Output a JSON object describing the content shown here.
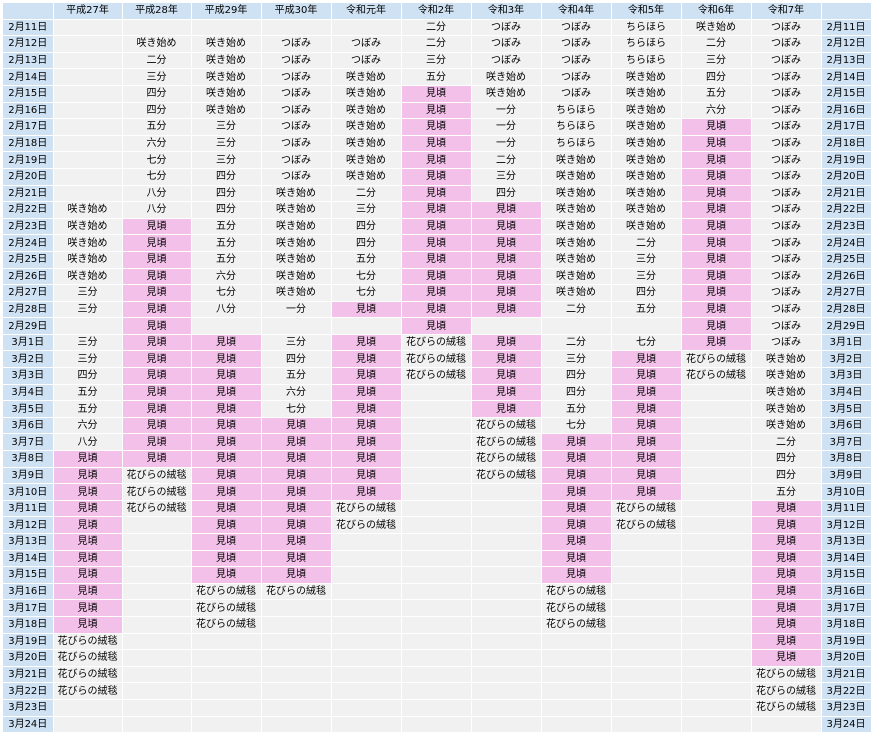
{
  "headers": [
    "",
    "平成27年",
    "平成28年",
    "平成29年",
    "平成30年",
    "令和元年",
    "令和2年",
    "令和3年",
    "令和4年",
    "令和5年",
    "令和6年",
    "令和7年",
    ""
  ],
  "legend_color": {
    "mikoro": "#f2c0e8",
    "date_bg": "#cfe2f4",
    "cell_bg": "#f1f1f1"
  },
  "rows": [
    {
      "date": "2月11日",
      "cells": [
        "",
        "",
        "",
        "",
        "",
        "二分",
        "つぼみ",
        "つぼみ",
        "ちらほら",
        "咲き始め",
        "つぼみ"
      ]
    },
    {
      "date": "2月12日",
      "cells": [
        "",
        "咲き始め",
        "咲き始め",
        "つぼみ",
        "つぼみ",
        "二分",
        "つぼみ",
        "つぼみ",
        "ちらほら",
        "二分",
        "つぼみ"
      ]
    },
    {
      "date": "2月13日",
      "cells": [
        "",
        "二分",
        "咲き始め",
        "つぼみ",
        "つぼみ",
        "三分",
        "つぼみ",
        "つぼみ",
        "ちらほら",
        "三分",
        "つぼみ"
      ]
    },
    {
      "date": "2月14日",
      "cells": [
        "",
        "三分",
        "咲き始め",
        "つぼみ",
        "咲き始め",
        "五分",
        "咲き始め",
        "つぼみ",
        "咲き始め",
        "四分",
        "つぼみ"
      ]
    },
    {
      "date": "2月15日",
      "cells": [
        "",
        "四分",
        "咲き始め",
        "つぼみ",
        "咲き始め",
        "見頃",
        "咲き始め",
        "つぼみ",
        "咲き始め",
        "五分",
        "つぼみ"
      ]
    },
    {
      "date": "2月16日",
      "cells": [
        "",
        "四分",
        "咲き始め",
        "つぼみ",
        "咲き始め",
        "見頃",
        "一分",
        "ちらほら",
        "咲き始め",
        "六分",
        "つぼみ"
      ]
    },
    {
      "date": "2月17日",
      "cells": [
        "",
        "五分",
        "三分",
        "つぼみ",
        "咲き始め",
        "見頃",
        "一分",
        "ちらほら",
        "咲き始め",
        "見頃",
        "つぼみ"
      ]
    },
    {
      "date": "2月18日",
      "cells": [
        "",
        "六分",
        "三分",
        "つぼみ",
        "咲き始め",
        "見頃",
        "一分",
        "ちらほら",
        "咲き始め",
        "見頃",
        "つぼみ"
      ]
    },
    {
      "date": "2月19日",
      "cells": [
        "",
        "七分",
        "三分",
        "つぼみ",
        "咲き始め",
        "見頃",
        "二分",
        "咲き始め",
        "咲き始め",
        "見頃",
        "つぼみ"
      ]
    },
    {
      "date": "2月20日",
      "cells": [
        "",
        "七分",
        "四分",
        "つぼみ",
        "咲き始め",
        "見頃",
        "三分",
        "咲き始め",
        "咲き始め",
        "見頃",
        "つぼみ"
      ]
    },
    {
      "date": "2月21日",
      "cells": [
        "",
        "八分",
        "四分",
        "咲き始め",
        "二分",
        "見頃",
        "四分",
        "咲き始め",
        "咲き始め",
        "見頃",
        "つぼみ"
      ]
    },
    {
      "date": "2月22日",
      "cells": [
        "咲き始め",
        "八分",
        "四分",
        "咲き始め",
        "三分",
        "見頃",
        "見頃",
        "咲き始め",
        "咲き始め",
        "見頃",
        "つぼみ"
      ]
    },
    {
      "date": "2月23日",
      "cells": [
        "咲き始め",
        "見頃",
        "五分",
        "咲き始め",
        "四分",
        "見頃",
        "見頃",
        "咲き始め",
        "咲き始め",
        "見頃",
        "つぼみ"
      ]
    },
    {
      "date": "2月24日",
      "cells": [
        "咲き始め",
        "見頃",
        "五分",
        "咲き始め",
        "四分",
        "見頃",
        "見頃",
        "咲き始め",
        "二分",
        "見頃",
        "つぼみ"
      ]
    },
    {
      "date": "2月25日",
      "cells": [
        "咲き始め",
        "見頃",
        "五分",
        "咲き始め",
        "五分",
        "見頃",
        "見頃",
        "咲き始め",
        "三分",
        "見頃",
        "つぼみ"
      ]
    },
    {
      "date": "2月26日",
      "cells": [
        "咲き始め",
        "見頃",
        "六分",
        "咲き始め",
        "七分",
        "見頃",
        "見頃",
        "咲き始め",
        "三分",
        "見頃",
        "つぼみ"
      ]
    },
    {
      "date": "2月27日",
      "cells": [
        "三分",
        "見頃",
        "七分",
        "咲き始め",
        "七分",
        "見頃",
        "見頃",
        "咲き始め",
        "四分",
        "見頃",
        "つぼみ"
      ]
    },
    {
      "date": "2月28日",
      "cells": [
        "三分",
        "見頃",
        "八分",
        "一分",
        "見頃",
        "見頃",
        "見頃",
        "二分",
        "五分",
        "見頃",
        "つぼみ"
      ]
    },
    {
      "date": "2月29日",
      "cells": [
        "",
        "見頃",
        "",
        "",
        "",
        "見頃",
        "",
        "",
        "",
        "見頃",
        "つぼみ"
      ]
    },
    {
      "date": "3月1日",
      "cells": [
        "三分",
        "見頃",
        "見頃",
        "三分",
        "見頃",
        "花びらの絨毯",
        "見頃",
        "二分",
        "七分",
        "見頃",
        "つぼみ"
      ]
    },
    {
      "date": "3月2日",
      "cells": [
        "三分",
        "見頃",
        "見頃",
        "四分",
        "見頃",
        "花びらの絨毯",
        "見頃",
        "三分",
        "見頃",
        "花びらの絨毯",
        "咲き始め"
      ]
    },
    {
      "date": "3月3日",
      "cells": [
        "四分",
        "見頃",
        "見頃",
        "五分",
        "見頃",
        "花びらの絨毯",
        "見頃",
        "四分",
        "見頃",
        "花びらの絨毯",
        "咲き始め"
      ]
    },
    {
      "date": "3月4日",
      "cells": [
        "五分",
        "見頃",
        "見頃",
        "六分",
        "見頃",
        "",
        "見頃",
        "四分",
        "見頃",
        "",
        "咲き始め"
      ]
    },
    {
      "date": "3月5日",
      "cells": [
        "五分",
        "見頃",
        "見頃",
        "七分",
        "見頃",
        "",
        "見頃",
        "五分",
        "見頃",
        "",
        "咲き始め"
      ]
    },
    {
      "date": "3月6日",
      "cells": [
        "六分",
        "見頃",
        "見頃",
        "見頃",
        "見頃",
        "",
        "花びらの絨毯",
        "七分",
        "見頃",
        "",
        "咲き始め"
      ]
    },
    {
      "date": "3月7日",
      "cells": [
        "八分",
        "見頃",
        "見頃",
        "見頃",
        "見頃",
        "",
        "花びらの絨毯",
        "見頃",
        "見頃",
        "",
        "二分"
      ]
    },
    {
      "date": "3月8日",
      "cells": [
        "見頃",
        "見頃",
        "見頃",
        "見頃",
        "見頃",
        "",
        "花びらの絨毯",
        "見頃",
        "見頃",
        "",
        "四分"
      ]
    },
    {
      "date": "3月9日",
      "cells": [
        "見頃",
        "花びらの絨毯",
        "見頃",
        "見頃",
        "見頃",
        "",
        "花びらの絨毯",
        "見頃",
        "見頃",
        "",
        "四分"
      ]
    },
    {
      "date": "3月10日",
      "cells": [
        "見頃",
        "花びらの絨毯",
        "見頃",
        "見頃",
        "見頃",
        "",
        "",
        "見頃",
        "見頃",
        "",
        "五分"
      ]
    },
    {
      "date": "3月11日",
      "cells": [
        "見頃",
        "花びらの絨毯",
        "見頃",
        "見頃",
        "花びらの絨毯",
        "",
        "",
        "見頃",
        "花びらの絨毯",
        "",
        "見頃"
      ]
    },
    {
      "date": "3月12日",
      "cells": [
        "見頃",
        "",
        "見頃",
        "見頃",
        "花びらの絨毯",
        "",
        "",
        "見頃",
        "花びらの絨毯",
        "",
        "見頃"
      ]
    },
    {
      "date": "3月13日",
      "cells": [
        "見頃",
        "",
        "見頃",
        "見頃",
        "",
        "",
        "",
        "見頃",
        "",
        "",
        "見頃"
      ]
    },
    {
      "date": "3月14日",
      "cells": [
        "見頃",
        "",
        "見頃",
        "見頃",
        "",
        "",
        "",
        "見頃",
        "",
        "",
        "見頃"
      ]
    },
    {
      "date": "3月15日",
      "cells": [
        "見頃",
        "",
        "見頃",
        "見頃",
        "",
        "",
        "",
        "見頃",
        "",
        "",
        "見頃"
      ]
    },
    {
      "date": "3月16日",
      "cells": [
        "見頃",
        "",
        "花びらの絨毯",
        "花びらの絨毯",
        "",
        "",
        "",
        "花びらの絨毯",
        "",
        "",
        "見頃"
      ]
    },
    {
      "date": "3月17日",
      "cells": [
        "見頃",
        "",
        "花びらの絨毯",
        "",
        "",
        "",
        "",
        "花びらの絨毯",
        "",
        "",
        "見頃"
      ]
    },
    {
      "date": "3月18日",
      "cells": [
        "見頃",
        "",
        "花びらの絨毯",
        "",
        "",
        "",
        "",
        "花びらの絨毯",
        "",
        "",
        "見頃"
      ]
    },
    {
      "date": "3月19日",
      "cells": [
        "花びらの絨毯",
        "",
        "",
        "",
        "",
        "",
        "",
        "",
        "",
        "",
        "見頃"
      ]
    },
    {
      "date": "3月20日",
      "cells": [
        "花びらの絨毯",
        "",
        "",
        "",
        "",
        "",
        "",
        "",
        "",
        "",
        "見頃"
      ]
    },
    {
      "date": "3月21日",
      "cells": [
        "花びらの絨毯",
        "",
        "",
        "",
        "",
        "",
        "",
        "",
        "",
        "",
        "花びらの絨毯"
      ]
    },
    {
      "date": "3月22日",
      "cells": [
        "花びらの絨毯",
        "",
        "",
        "",
        "",
        "",
        "",
        "",
        "",
        "",
        "花びらの絨毯"
      ]
    },
    {
      "date": "3月23日",
      "cells": [
        "",
        "",
        "",
        "",
        "",
        "",
        "",
        "",
        "",
        "",
        "花びらの絨毯"
      ]
    },
    {
      "date": "3月24日",
      "cells": [
        "",
        "",
        "",
        "",
        "",
        "",
        "",
        "",
        "",
        "",
        ""
      ]
    }
  ]
}
